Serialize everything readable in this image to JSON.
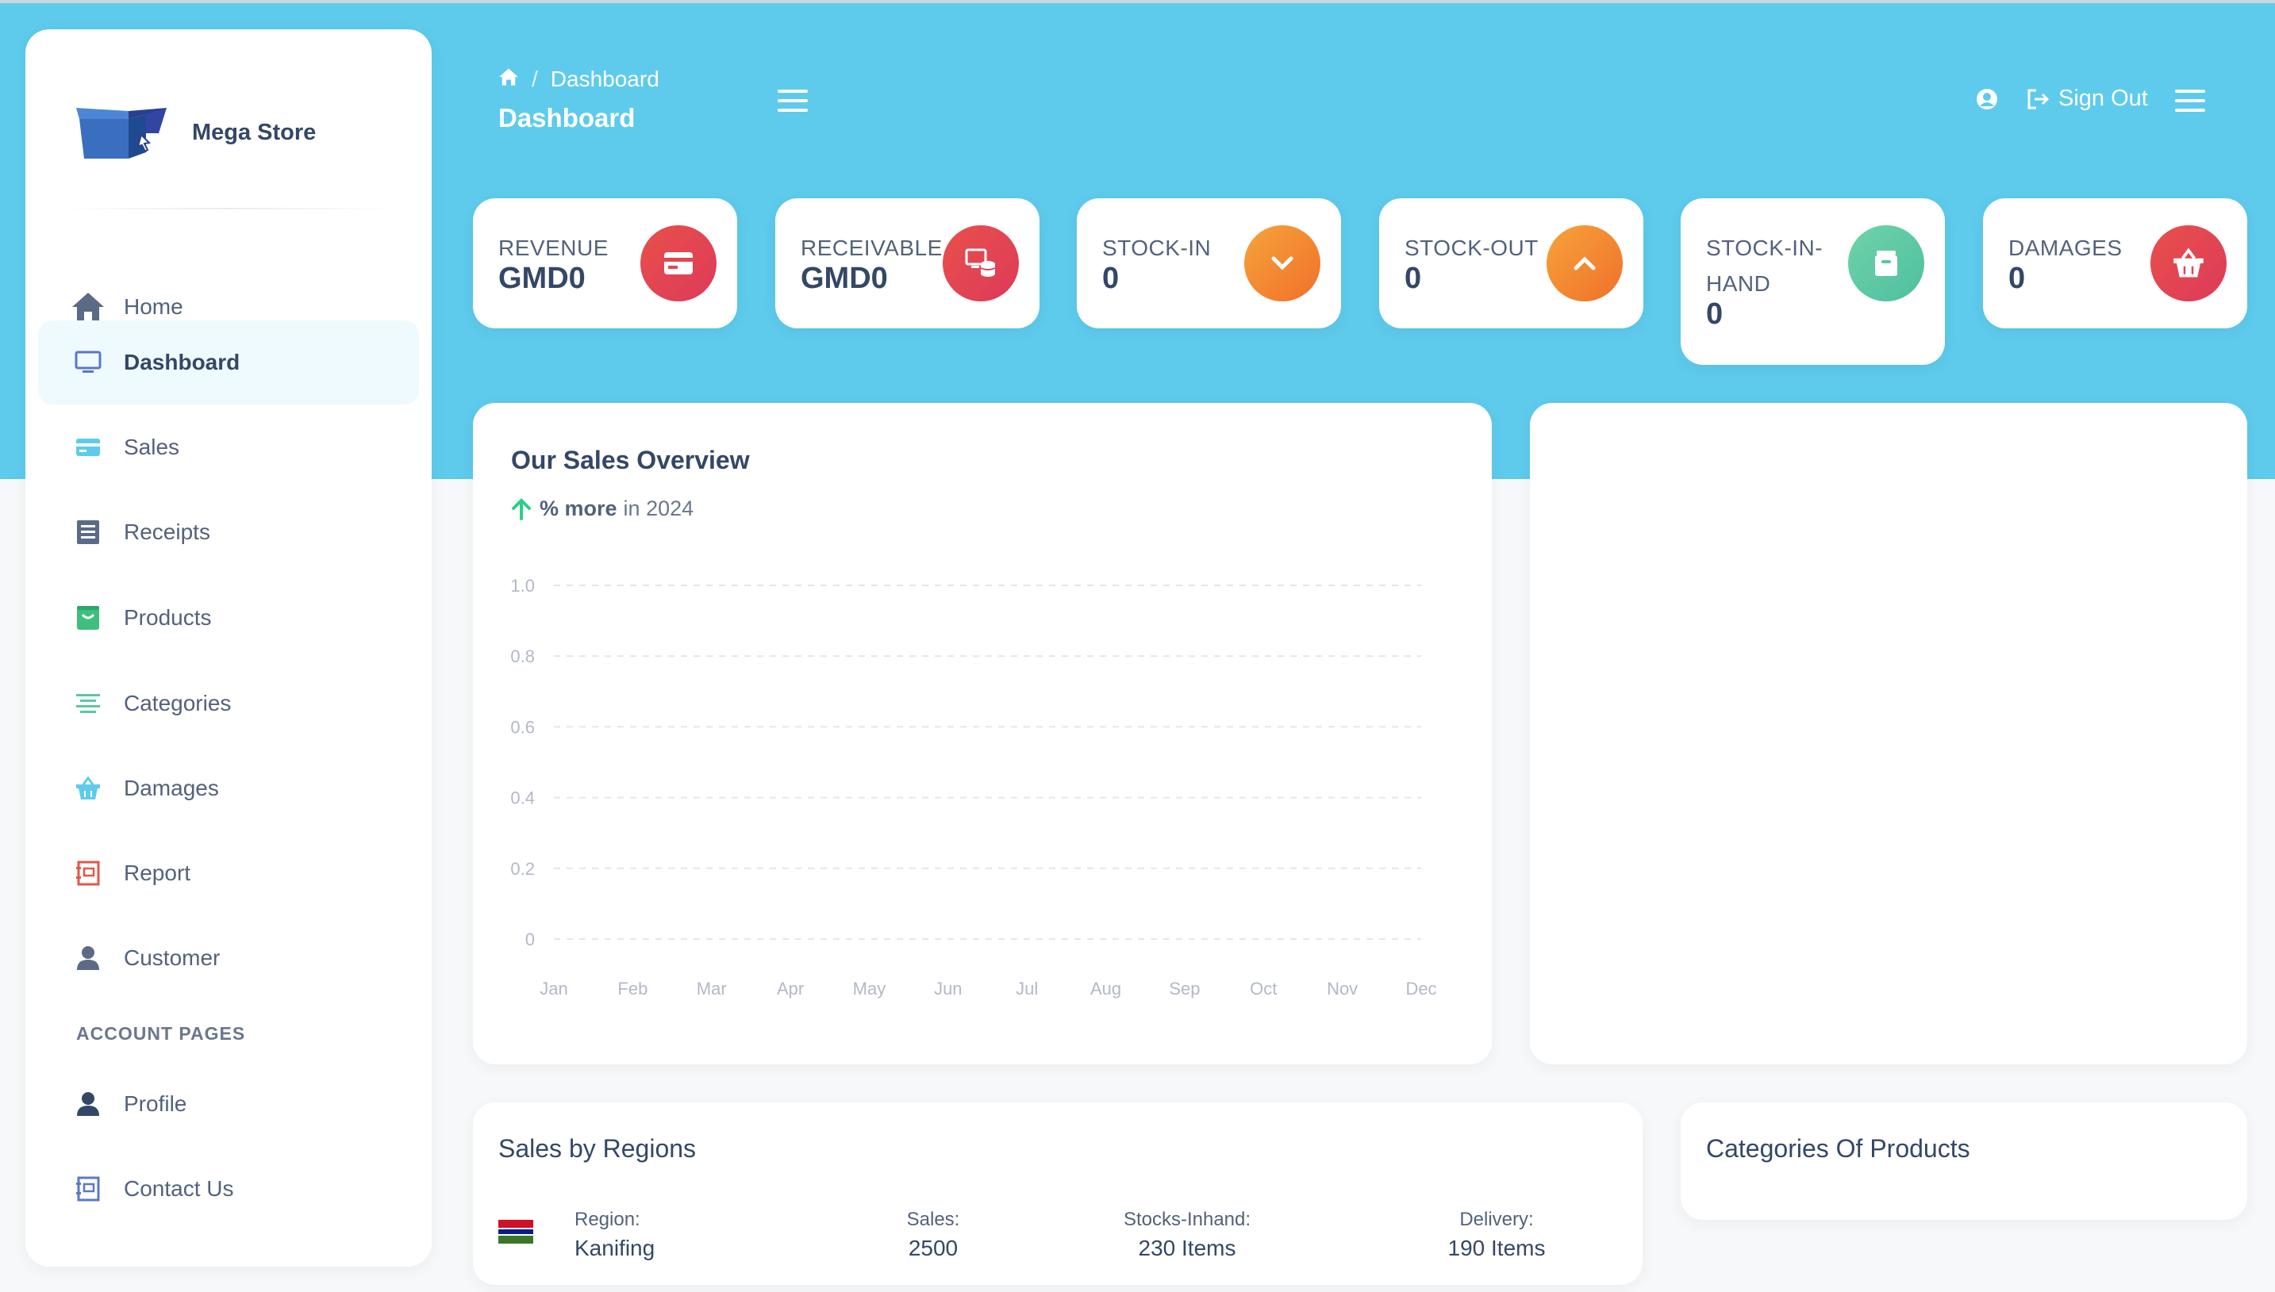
{
  "app": {
    "name": "Mega Store"
  },
  "breadcrumb": {
    "current": "Dashboard"
  },
  "header": {
    "title": "Dashboard",
    "sign_out": "Sign Out"
  },
  "sidebar": {
    "items": [
      {
        "label": "Home",
        "icon": "home-icon"
      },
      {
        "label": "Dashboard",
        "icon": "monitor-icon",
        "active": true
      },
      {
        "label": "Sales",
        "icon": "credit-card-icon"
      },
      {
        "label": "Receipts",
        "icon": "receipt-icon"
      },
      {
        "label": "Products",
        "icon": "bag-icon"
      },
      {
        "label": "Categories",
        "icon": "list-icon"
      },
      {
        "label": "Damages",
        "icon": "basket-icon"
      },
      {
        "label": "Report",
        "icon": "report-icon"
      },
      {
        "label": "Customer",
        "icon": "user-icon"
      }
    ],
    "section_title": "ACCOUNT PAGES",
    "account_items": [
      {
        "label": "Profile",
        "icon": "user-icon"
      },
      {
        "label": "Contact Us",
        "icon": "contact-icon"
      }
    ]
  },
  "stats": [
    {
      "label": "REVENUE",
      "value": "GMD0",
      "icon": "credit-card-icon",
      "color": "#e2474f"
    },
    {
      "label": "RECEIVABLE",
      "value": "GMD0",
      "icon": "coins-icon",
      "color": "#e2474f"
    },
    {
      "label": "STOCK-IN",
      "value": "0",
      "icon": "chevron-down-icon",
      "color": "#f27d2c"
    },
    {
      "label": "STOCK-OUT",
      "value": "0",
      "icon": "chevron-up-icon",
      "color": "#f27d2c"
    },
    {
      "label_line1": "STOCK-IN-",
      "label_line2": "HAND",
      "value": "0",
      "icon": "box-icon",
      "color": "#5ac8a2"
    },
    {
      "label": "DAMAGES",
      "value": "0",
      "icon": "basket-icon",
      "color": "#e2474f"
    }
  ],
  "sales_overview": {
    "title": "Our Sales Overview",
    "subtitle_bold": "% more",
    "subtitle_rest": "in 2024"
  },
  "chart_data": {
    "type": "line",
    "title": "Our Sales Overview",
    "categories": [
      "Jan",
      "Feb",
      "Mar",
      "Apr",
      "May",
      "Jun",
      "Jul",
      "Aug",
      "Sep",
      "Oct",
      "Nov",
      "Dec"
    ],
    "series": [],
    "ylim": [
      0,
      1.0
    ],
    "yticks": [
      "1.0",
      "0.8",
      "0.6",
      "0.4",
      "0.2",
      "0"
    ],
    "grid": true
  },
  "regions": {
    "title": "Sales by Regions",
    "rows": [
      {
        "region_label": "Region:",
        "region": "Kanifing",
        "sales_label": "Sales:",
        "sales": "2500",
        "stocks_label": "Stocks-Inhand:",
        "stocks": "230 Items",
        "delivery_label": "Delivery:",
        "delivery": "190 Items"
      }
    ]
  },
  "categories_card": {
    "title": "Categories Of Products"
  }
}
